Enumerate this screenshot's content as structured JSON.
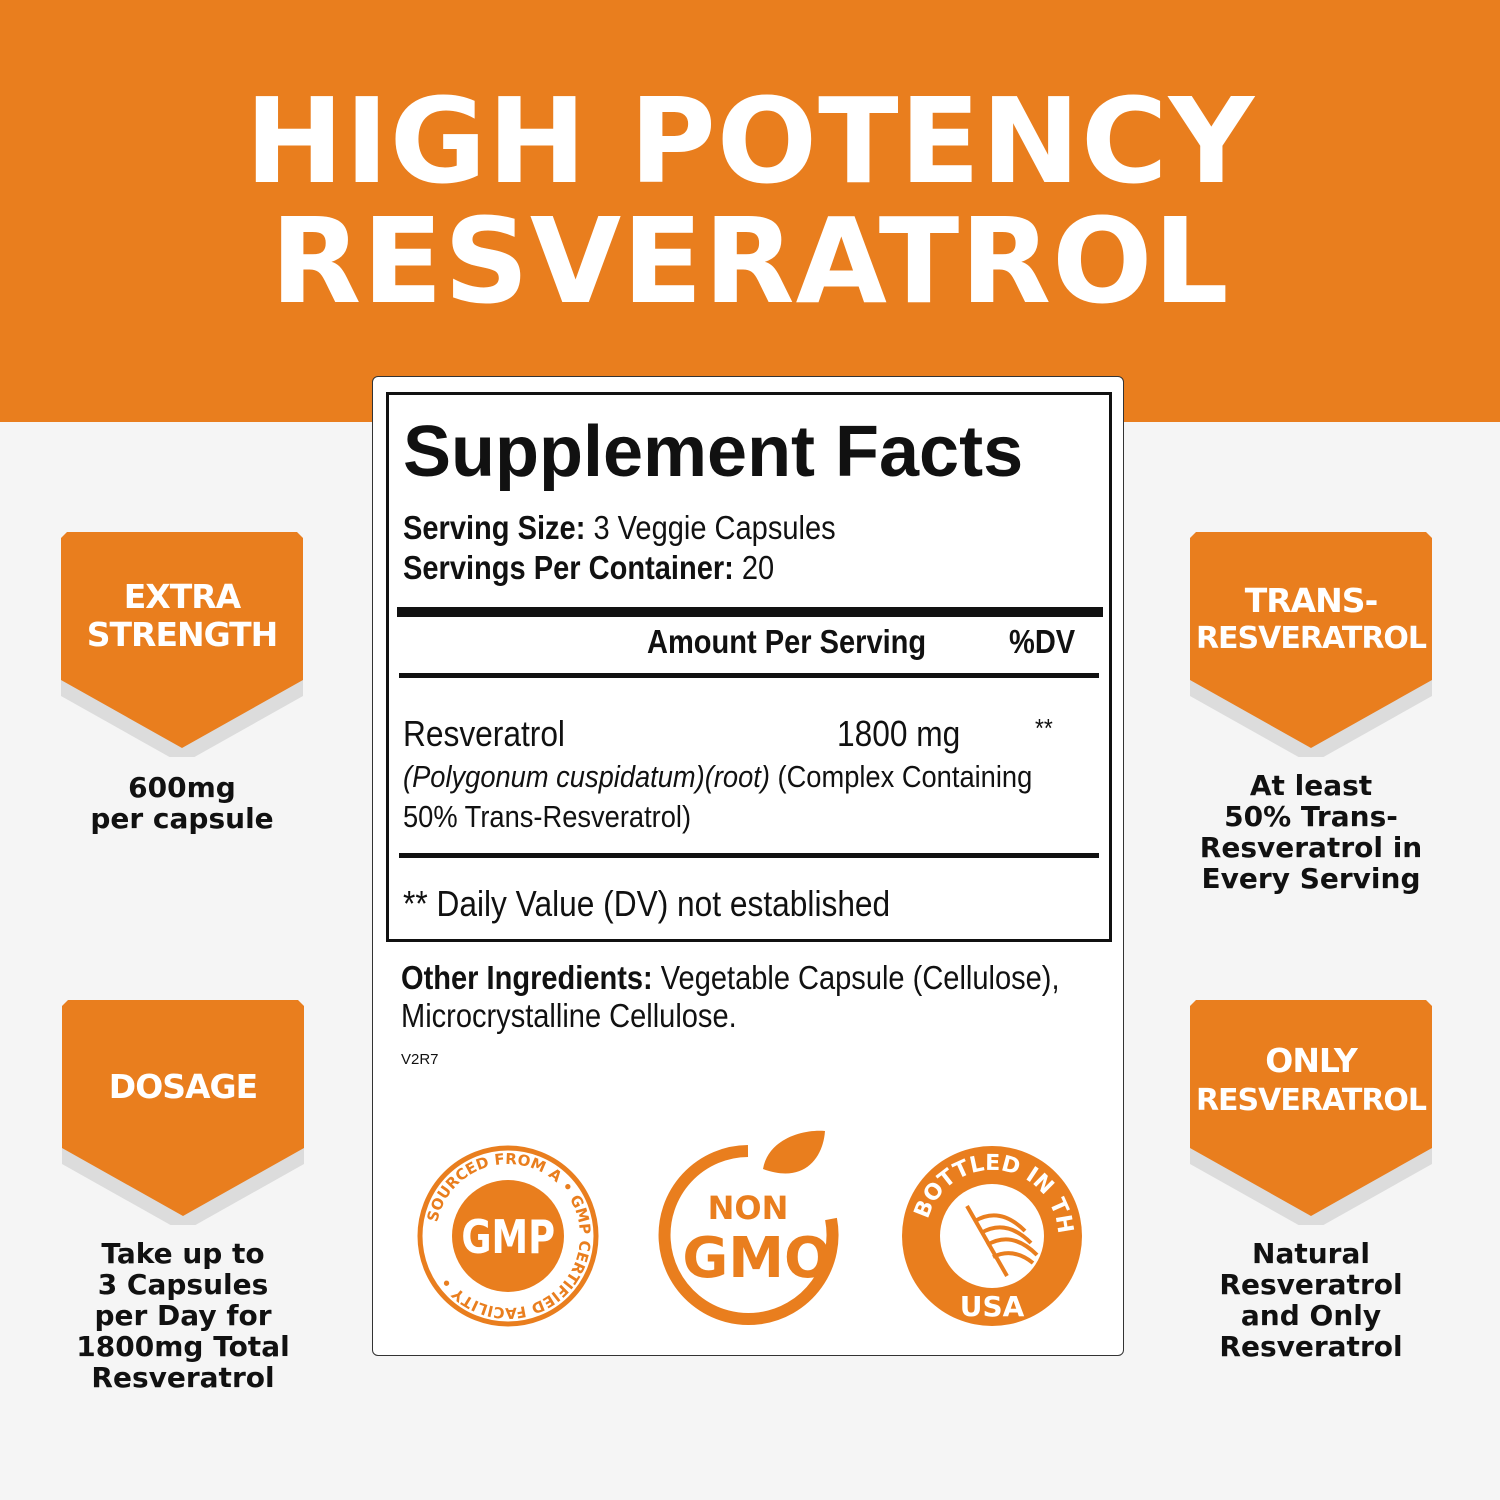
{
  "header": {
    "line1": "HIGH POTENCY",
    "line2": "RESVERATROL"
  },
  "facts": {
    "title": "Supplement Facts",
    "serving_size_label": "Serving Size:",
    "serving_size": "3 Veggie Capsules",
    "servings_label": "Servings Per Container:",
    "servings": "20",
    "col_amount": "Amount Per Serving",
    "col_dv": "%DV",
    "ingredient": "Resveratrol",
    "amount": "1800 mg",
    "dv": "**",
    "source_italic": "(Polygonum cuspidatum)(root)",
    "source_rest": "(Complex Containing",
    "source_line2": "50% Trans-Resveratrol)",
    "footnote": "** Daily Value (DV) not established"
  },
  "other": {
    "label": "Other Ingredients:",
    "text1": "Vegetable Capsule (Cellulose),",
    "text2": "Microcrystalline Cellulose.",
    "code": "V2R7"
  },
  "seals": [
    {
      "icon": "gmp-seal-icon",
      "text": "SOURCED FROM A GMP CERTIFIED FACILITY",
      "center": "GMP"
    },
    {
      "icon": "non-gmo-seal-icon",
      "line1": "NON",
      "line2": "GMO"
    },
    {
      "icon": "usa-seal-icon",
      "text": "BOTTLED IN THE USA"
    }
  ],
  "badges": [
    {
      "label1": "EXTRA",
      "label2": "STRENGTH",
      "caption": [
        "600mg",
        "per capsule"
      ]
    },
    {
      "label1": "DOSAGE",
      "label2": "",
      "caption": [
        "Take up to",
        "3 Capsules",
        "per Day for",
        "1800mg Total",
        "Resveratrol"
      ]
    },
    {
      "label1": "TRANS-",
      "label2": "RESVERATROL",
      "caption": [
        "At least",
        "50% Trans-",
        "Resveratrol in",
        "Every Serving"
      ]
    },
    {
      "label1": "ONLY",
      "label2": "RESVERATROL",
      "caption": [
        "Natural",
        "Resveratrol",
        "and Only",
        "Resveratrol"
      ]
    }
  ],
  "colors": {
    "accent": "#e97e1e",
    "background": "#f5f5f5"
  }
}
